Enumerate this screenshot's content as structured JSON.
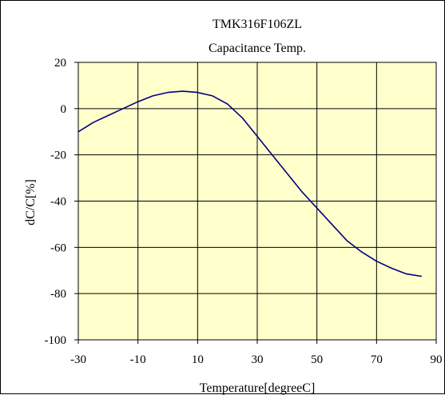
{
  "chart_data": {
    "type": "line",
    "title": "TMK316F106ZL",
    "subtitle": "Capacitance Temp.",
    "xlabel": "Temperature[degreeC]",
    "ylabel": "dC/C[%]",
    "xlim": [
      -30,
      90
    ],
    "ylim": [
      -100,
      20
    ],
    "xticks": [
      -30,
      -10,
      10,
      30,
      50,
      70,
      90
    ],
    "yticks": [
      20,
      0,
      -20,
      -40,
      -60,
      -80,
      -100
    ],
    "xtick_labels": [
      "-30",
      "-10",
      "10",
      "30",
      "50",
      "70",
      "90"
    ],
    "ytick_labels": [
      "20",
      "0",
      "-20",
      "-40",
      "-60",
      "-80",
      "-100"
    ],
    "grid": true,
    "colors": {
      "plot_background": "#FFFFCC",
      "line": "#000080",
      "grid": "#000000"
    },
    "series": [
      {
        "x": [
          -30,
          -25,
          -20,
          -15,
          -10,
          -5,
          0,
          5,
          10,
          15,
          20,
          25,
          30,
          35,
          40,
          45,
          50,
          55,
          60,
          65,
          70,
          75,
          80,
          85
        ],
        "y": [
          -10,
          -6,
          -3,
          0,
          3,
          5.5,
          7,
          7.5,
          7,
          5.5,
          2,
          -4,
          -12,
          -20,
          -28,
          -36,
          -43,
          -50,
          -57,
          -62,
          -66,
          -69,
          -71.5,
          -72.5
        ]
      }
    ]
  }
}
